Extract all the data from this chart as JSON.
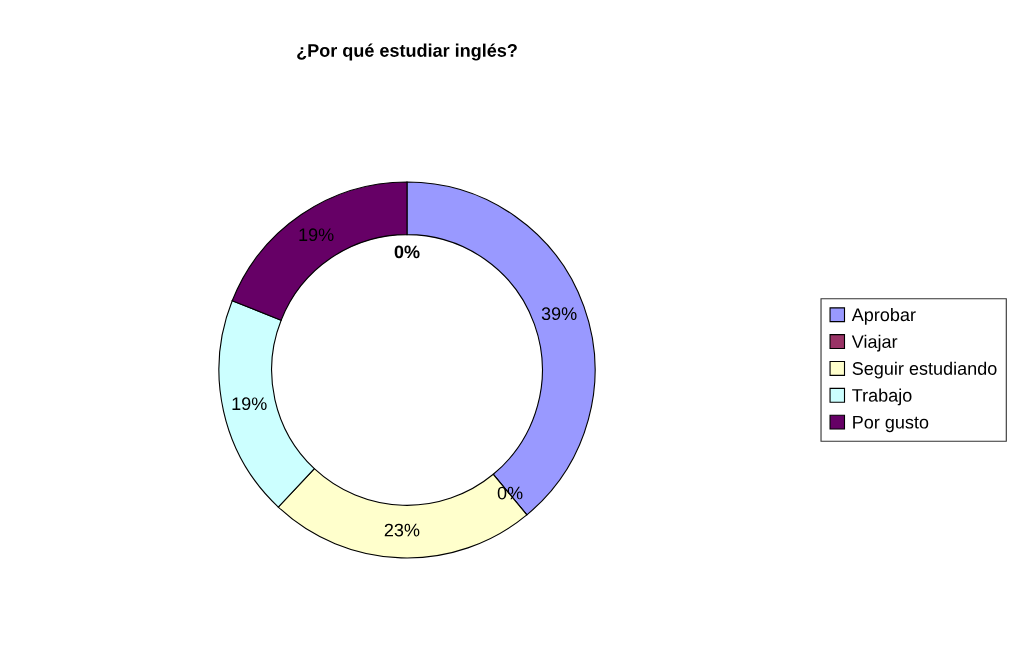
{
  "chart_data": {
    "type": "donut",
    "title": "¿Por qué estudiar inglés?",
    "categories": [
      "Aprobar",
      "Viajar",
      "Seguir estudiando",
      "Trabajo",
      "Por gusto"
    ],
    "values": [
      39,
      0,
      23,
      19,
      19
    ],
    "colors": [
      "#9999ff",
      "#993366",
      "#ffffcc",
      "#ccffff",
      "#660066"
    ],
    "value_labels": [
      "39%",
      "0%",
      "23%",
      "19%",
      "19%"
    ],
    "annotations": [
      "0%"
    ],
    "legend": "right"
  }
}
